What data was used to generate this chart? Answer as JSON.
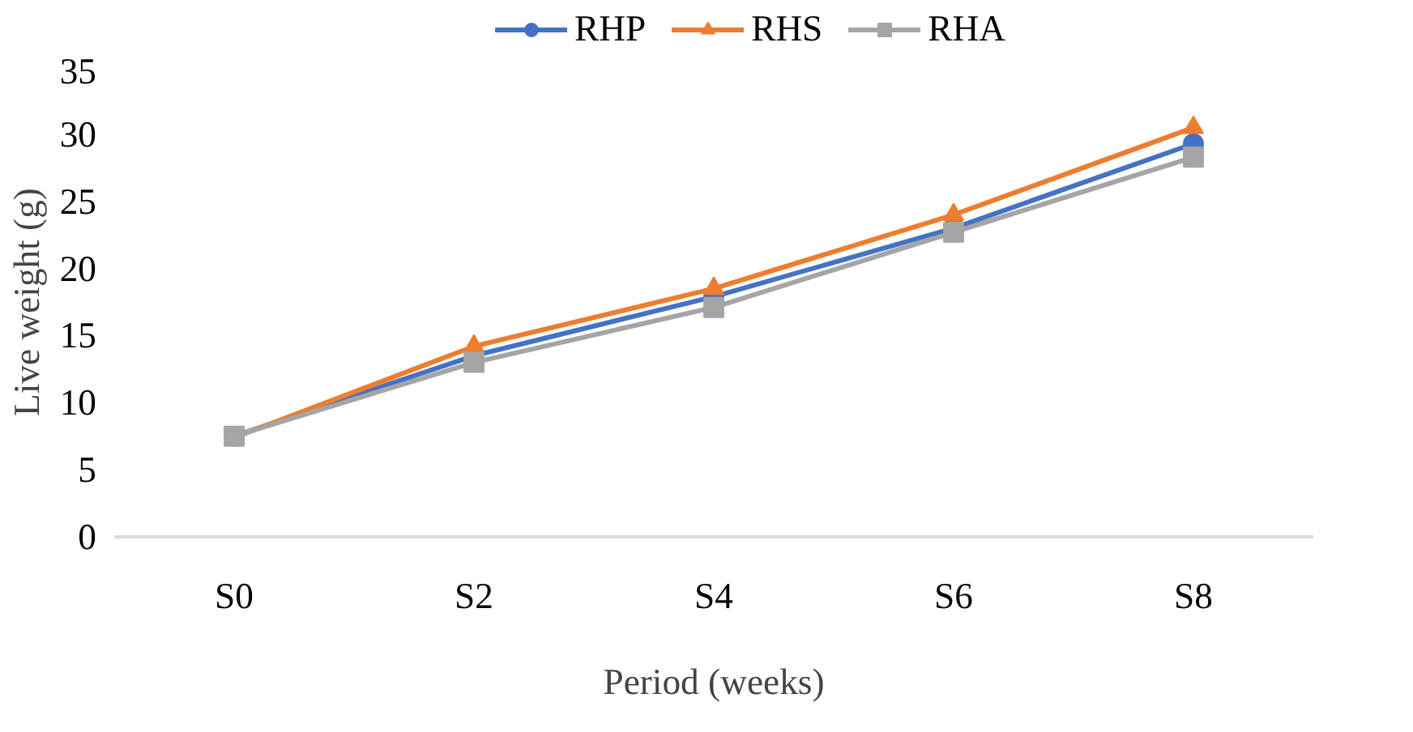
{
  "chart_data": {
    "type": "line",
    "xlabel": "Period (weeks)",
    "ylabel": "Live weight (g)",
    "categories": [
      "S0",
      "S2",
      "S4",
      "S6",
      "S8"
    ],
    "series": [
      {
        "name": "RHP",
        "color": "#4472c4",
        "marker": "circle",
        "values": [
          7.5,
          13.5,
          17.9,
          23.0,
          29.3
        ]
      },
      {
        "name": "RHS",
        "color": "#ed7d31",
        "marker": "triangle",
        "values": [
          7.4,
          14.2,
          18.5,
          24.0,
          30.5
        ]
      },
      {
        "name": "RHA",
        "color": "#a5a5a5",
        "marker": "square",
        "values": [
          7.5,
          13.0,
          17.1,
          22.7,
          28.3
        ]
      }
    ],
    "ylim": [
      0,
      35
    ],
    "yticks": [
      0,
      5,
      10,
      15,
      20,
      25,
      30,
      35
    ],
    "grid": false,
    "legend": "top"
  }
}
